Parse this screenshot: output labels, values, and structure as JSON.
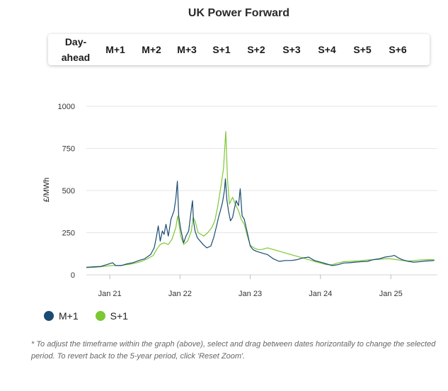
{
  "chart_data": {
    "type": "line",
    "title": "UK Power Forward",
    "ylabel": "£/MWh",
    "xlabel": "",
    "ylim": [
      0,
      1000
    ],
    "xlim": [
      "2020-09-01",
      "2025-08-31"
    ],
    "yticks": [
      "0",
      "250",
      "500",
      "750",
      "1000"
    ],
    "xticks": [
      {
        "date": "2021-01-01",
        "label": "Jan 21"
      },
      {
        "date": "2022-01-01",
        "label": "Jan 22"
      },
      {
        "date": "2023-01-01",
        "label": "Jan 23"
      },
      {
        "date": "2024-01-01",
        "label": "Jan 24"
      },
      {
        "date": "2025-01-01",
        "label": "Jan 25"
      }
    ],
    "grid": true,
    "legend": "bottom-left",
    "series": [
      {
        "name": "M+1",
        "color": "#1a4b72",
        "points": [
          [
            "2020-09-01",
            45
          ],
          [
            "2020-10-15",
            48
          ],
          [
            "2020-11-15",
            50
          ],
          [
            "2020-12-15",
            60
          ],
          [
            "2021-01-15",
            72
          ],
          [
            "2021-02-01",
            55
          ],
          [
            "2021-03-01",
            55
          ],
          [
            "2021-04-01",
            65
          ],
          [
            "2021-05-01",
            72
          ],
          [
            "2021-06-01",
            85
          ],
          [
            "2021-07-01",
            95
          ],
          [
            "2021-08-01",
            120
          ],
          [
            "2021-08-20",
            160
          ],
          [
            "2021-09-01",
            230
          ],
          [
            "2021-09-10",
            290
          ],
          [
            "2021-09-20",
            200
          ],
          [
            "2021-10-01",
            260
          ],
          [
            "2021-10-10",
            240
          ],
          [
            "2021-10-20",
            300
          ],
          [
            "2021-11-01",
            230
          ],
          [
            "2021-11-15",
            330
          ],
          [
            "2021-12-01",
            380
          ],
          [
            "2021-12-10",
            450
          ],
          [
            "2021-12-18",
            555
          ],
          [
            "2021-12-25",
            350
          ],
          [
            "2022-01-05",
            270
          ],
          [
            "2022-01-20",
            190
          ],
          [
            "2022-02-01",
            230
          ],
          [
            "2022-02-15",
            260
          ],
          [
            "2022-03-01",
            390
          ],
          [
            "2022-03-07",
            440
          ],
          [
            "2022-03-12",
            320
          ],
          [
            "2022-03-20",
            260
          ],
          [
            "2022-04-01",
            220
          ],
          [
            "2022-05-01",
            180
          ],
          [
            "2022-05-20",
            160
          ],
          [
            "2022-06-10",
            170
          ],
          [
            "2022-06-25",
            220
          ],
          [
            "2022-07-10",
            290
          ],
          [
            "2022-07-20",
            340
          ],
          [
            "2022-08-01",
            390
          ],
          [
            "2022-08-10",
            430
          ],
          [
            "2022-08-20",
            500
          ],
          [
            "2022-08-25",
            570
          ],
          [
            "2022-09-01",
            450
          ],
          [
            "2022-09-10",
            380
          ],
          [
            "2022-09-20",
            320
          ],
          [
            "2022-10-01",
            340
          ],
          [
            "2022-10-10",
            390
          ],
          [
            "2022-10-20",
            440
          ],
          [
            "2022-11-01",
            410
          ],
          [
            "2022-11-10",
            510
          ],
          [
            "2022-11-20",
            350
          ],
          [
            "2022-12-01",
            330
          ],
          [
            "2022-12-15",
            260
          ],
          [
            "2023-01-01",
            170
          ],
          [
            "2023-01-15",
            150
          ],
          [
            "2023-02-01",
            140
          ],
          [
            "2023-03-01",
            130
          ],
          [
            "2023-04-01",
            120
          ],
          [
            "2023-05-01",
            95
          ],
          [
            "2023-06-01",
            80
          ],
          [
            "2023-07-01",
            85
          ],
          [
            "2023-08-01",
            85
          ],
          [
            "2023-09-01",
            90
          ],
          [
            "2023-10-01",
            100
          ],
          [
            "2023-11-01",
            105
          ],
          [
            "2023-12-01",
            85
          ],
          [
            "2024-01-01",
            75
          ],
          [
            "2024-02-01",
            65
          ],
          [
            "2024-03-01",
            55
          ],
          [
            "2024-04-01",
            60
          ],
          [
            "2024-05-01",
            70
          ],
          [
            "2024-06-01",
            72
          ],
          [
            "2024-07-01",
            75
          ],
          [
            "2024-08-01",
            78
          ],
          [
            "2024-09-01",
            80
          ],
          [
            "2024-10-01",
            90
          ],
          [
            "2024-11-01",
            95
          ],
          [
            "2024-12-01",
            105
          ],
          [
            "2025-01-01",
            110
          ],
          [
            "2025-01-20",
            115
          ],
          [
            "2025-02-10",
            100
          ],
          [
            "2025-03-01",
            90
          ],
          [
            "2025-04-01",
            80
          ],
          [
            "2025-05-01",
            75
          ],
          [
            "2025-06-01",
            78
          ],
          [
            "2025-07-01",
            82
          ],
          [
            "2025-08-15",
            85
          ]
        ]
      },
      {
        "name": "S+1",
        "color": "#7cc832",
        "points": [
          [
            "2020-09-01",
            42
          ],
          [
            "2020-10-15",
            45
          ],
          [
            "2020-11-15",
            48
          ],
          [
            "2020-12-15",
            52
          ],
          [
            "2021-01-15",
            55
          ],
          [
            "2021-02-15",
            55
          ],
          [
            "2021-03-15",
            58
          ],
          [
            "2021-04-15",
            62
          ],
          [
            "2021-05-15",
            70
          ],
          [
            "2021-06-15",
            80
          ],
          [
            "2021-07-15",
            95
          ],
          [
            "2021-08-15",
            115
          ],
          [
            "2021-09-01",
            150
          ],
          [
            "2021-09-20",
            180
          ],
          [
            "2021-10-10",
            190
          ],
          [
            "2021-11-01",
            180
          ],
          [
            "2021-11-20",
            210
          ],
          [
            "2021-12-10",
            280
          ],
          [
            "2021-12-20",
            350
          ],
          [
            "2022-01-05",
            230
          ],
          [
            "2022-01-20",
            180
          ],
          [
            "2022-02-10",
            200
          ],
          [
            "2022-03-01",
            260
          ],
          [
            "2022-03-10",
            340
          ],
          [
            "2022-03-20",
            320
          ],
          [
            "2022-04-05",
            250
          ],
          [
            "2022-04-20",
            240
          ],
          [
            "2022-05-05",
            230
          ],
          [
            "2022-05-25",
            250
          ],
          [
            "2022-06-15",
            280
          ],
          [
            "2022-07-01",
            320
          ],
          [
            "2022-07-15",
            400
          ],
          [
            "2022-08-01",
            520
          ],
          [
            "2022-08-15",
            630
          ],
          [
            "2022-08-27",
            850
          ],
          [
            "2022-09-05",
            560
          ],
          [
            "2022-09-15",
            420
          ],
          [
            "2022-10-01",
            460
          ],
          [
            "2022-10-15",
            420
          ],
          [
            "2022-11-01",
            380
          ],
          [
            "2022-11-15",
            330
          ],
          [
            "2022-12-01",
            300
          ],
          [
            "2022-12-15",
            240
          ],
          [
            "2023-01-01",
            175
          ],
          [
            "2023-01-20",
            160
          ],
          [
            "2023-02-10",
            150
          ],
          [
            "2023-03-01",
            150
          ],
          [
            "2023-04-01",
            160
          ],
          [
            "2023-05-01",
            150
          ],
          [
            "2023-06-01",
            140
          ],
          [
            "2023-07-01",
            130
          ],
          [
            "2023-08-01",
            120
          ],
          [
            "2023-09-01",
            110
          ],
          [
            "2023-10-01",
            100
          ],
          [
            "2023-11-01",
            90
          ],
          [
            "2023-12-01",
            80
          ],
          [
            "2024-01-01",
            70
          ],
          [
            "2024-02-01",
            60
          ],
          [
            "2024-03-01",
            60
          ],
          [
            "2024-04-01",
            70
          ],
          [
            "2024-05-01",
            78
          ],
          [
            "2024-06-01",
            80
          ],
          [
            "2024-07-01",
            82
          ],
          [
            "2024-08-01",
            85
          ],
          [
            "2024-09-01",
            88
          ],
          [
            "2024-10-01",
            90
          ],
          [
            "2024-11-01",
            92
          ],
          [
            "2024-12-01",
            95
          ],
          [
            "2025-01-01",
            95
          ],
          [
            "2025-02-01",
            90
          ],
          [
            "2025-03-01",
            85
          ],
          [
            "2025-04-01",
            82
          ],
          [
            "2025-05-01",
            85
          ],
          [
            "2025-06-01",
            88
          ],
          [
            "2025-07-01",
            90
          ],
          [
            "2025-08-15",
            90
          ]
        ]
      }
    ]
  },
  "page": {
    "title": "UK Power Forward",
    "tabs": [
      {
        "label": "Day-\nahead",
        "active": false
      },
      {
        "label": "M+1",
        "active": true
      },
      {
        "label": "M+2",
        "active": false
      },
      {
        "label": "M+3",
        "active": false
      },
      {
        "label": "S+1",
        "active": true
      },
      {
        "label": "S+2",
        "active": false
      },
      {
        "label": "S+3",
        "active": false
      },
      {
        "label": "S+4",
        "active": false
      },
      {
        "label": "S+5",
        "active": false
      },
      {
        "label": "S+6",
        "active": false
      }
    ],
    "legend": [
      {
        "label": "M+1",
        "color": "#1a4b72"
      },
      {
        "label": "S+1",
        "color": "#7cc832"
      }
    ],
    "note": "* To adjust the timeframe within the graph (above), select and drag between dates horizontally to change the selected period. To revert back to the 5-year period, click 'Reset Zoom'."
  }
}
